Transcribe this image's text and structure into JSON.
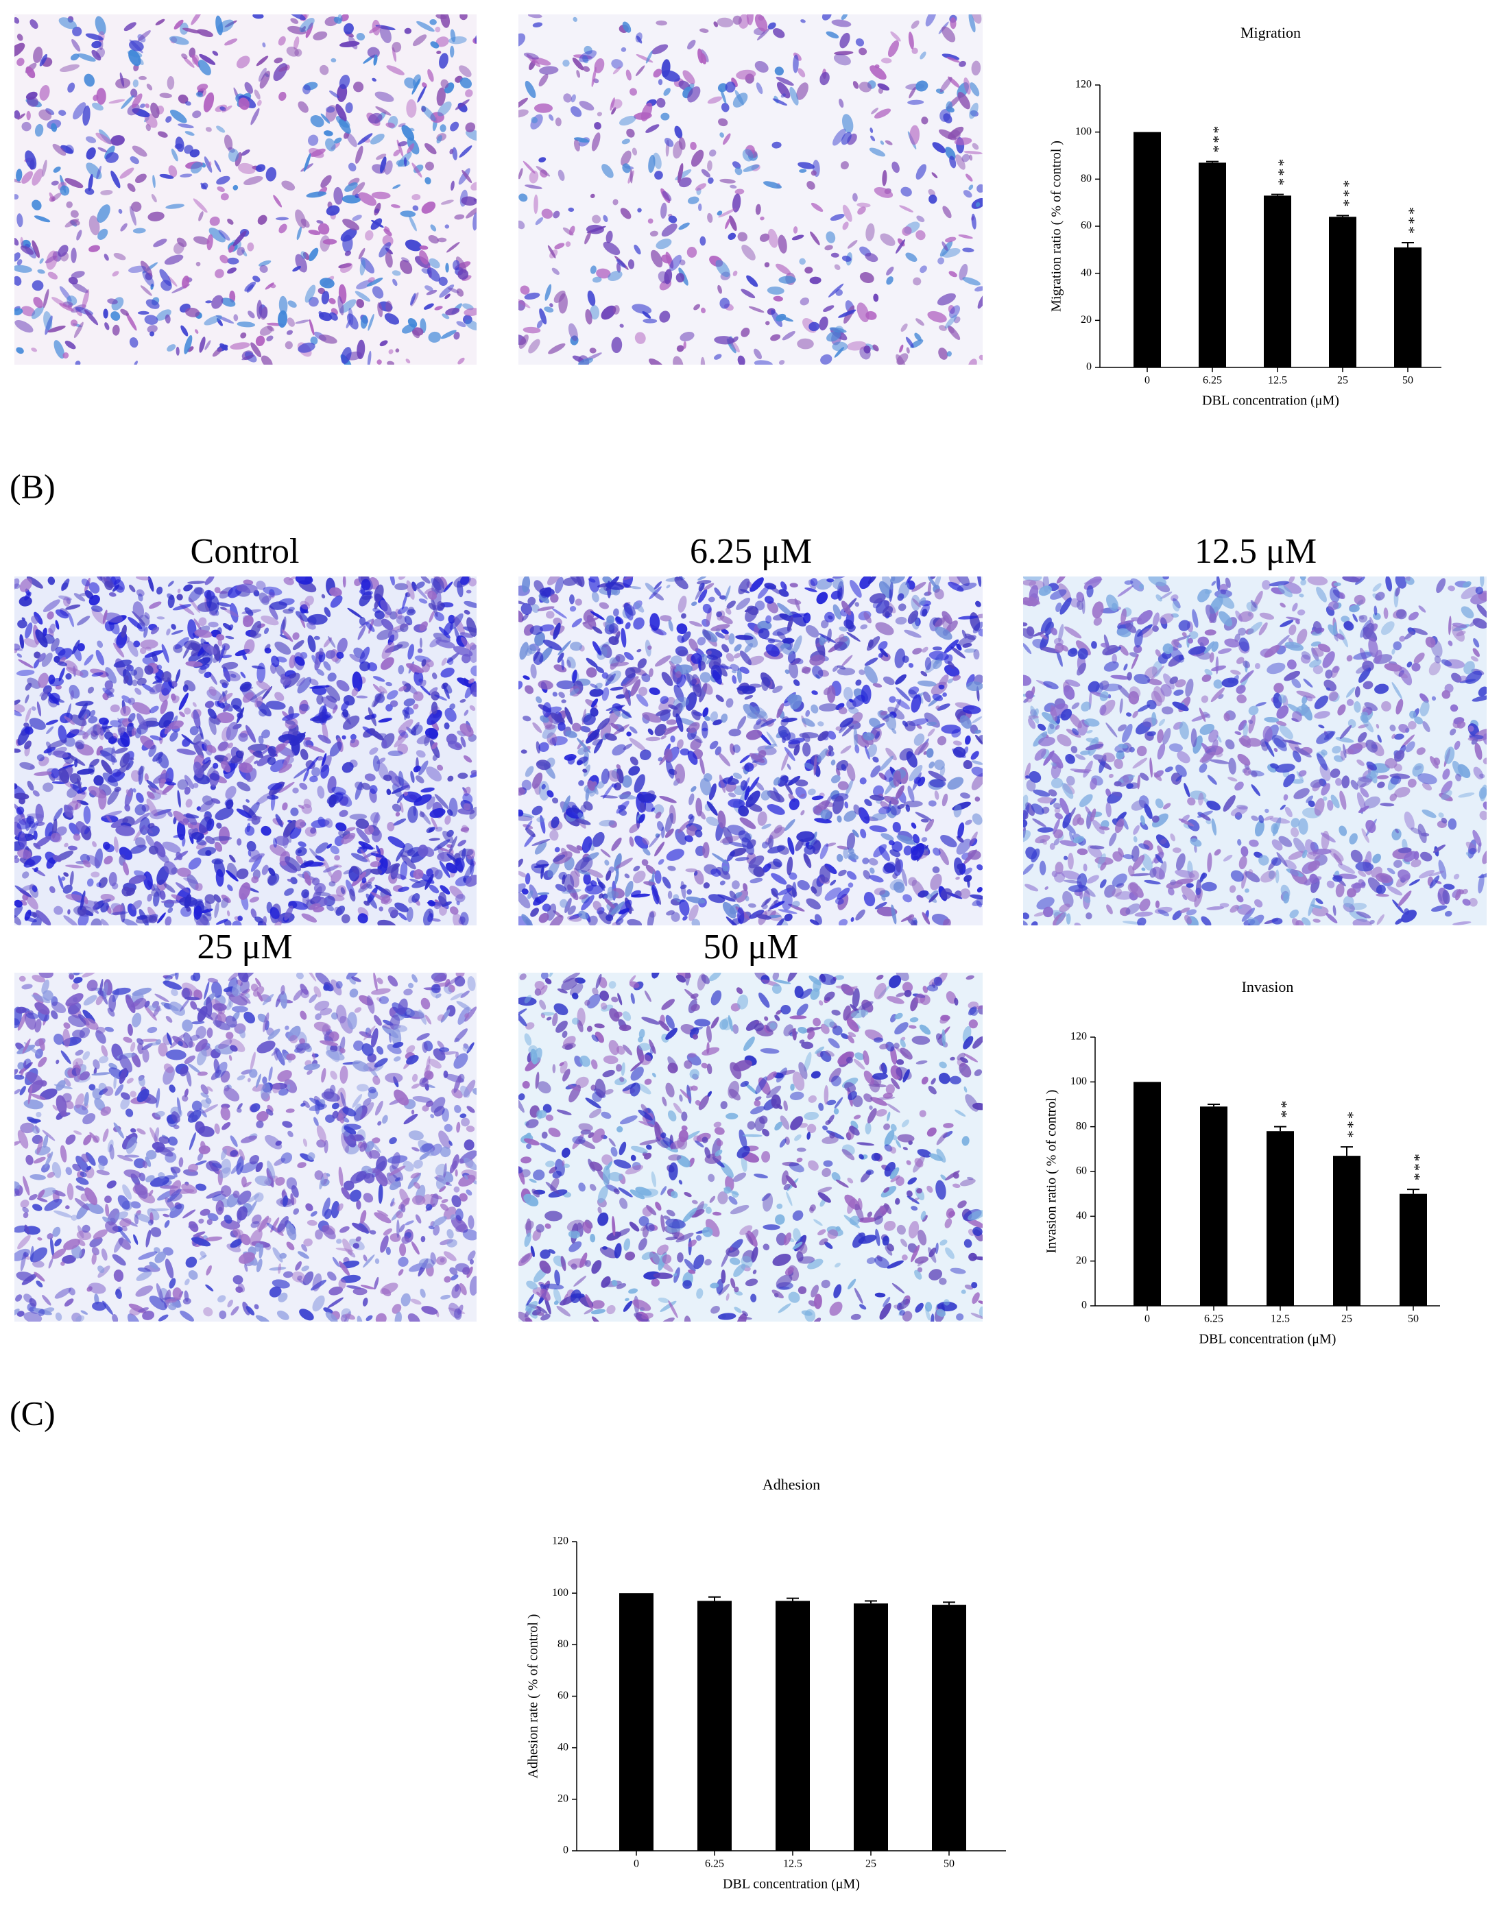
{
  "panel_labels": [
    "(B)",
    "(C)"
  ],
  "image_labels": [
    "Control",
    "6.25 μM",
    "12.5 μM",
    "25 μM",
    "50 μM"
  ],
  "chart_data": [
    {
      "type": "bar",
      "title": "Migration",
      "x_label": "DBL concentration (μM)",
      "y_label": "Migration ratio ( % of control )",
      "categories": [
        "0",
        "6.25",
        "12.5",
        "25",
        "50"
      ],
      "values": [
        100,
        87,
        73,
        64,
        51
      ],
      "errors": [
        0,
        0.5,
        0.5,
        0.5,
        2
      ],
      "color": "#000000",
      "ylim": [
        0,
        120
      ],
      "yticks": [
        0,
        20,
        40,
        60,
        80,
        100,
        120
      ],
      "annotations": [
        {
          "x": "6.25",
          "text": "***"
        },
        {
          "x": "12.5",
          "text": "***"
        },
        {
          "x": "25",
          "text": "***"
        },
        {
          "x": "50",
          "text": "***"
        }
      ]
    },
    {
      "type": "bar",
      "title": "Invasion",
      "x_label": "DBL concentration (μM)",
      "y_label": "Invasion ratio ( % of control )",
      "categories": [
        "0",
        "6.25",
        "12.5",
        "25",
        "50"
      ],
      "values": [
        100,
        89,
        78,
        67,
        50
      ],
      "errors": [
        0,
        1,
        2,
        4,
        2
      ],
      "color": "#000000",
      "ylim": [
        0,
        120
      ],
      "yticks": [
        0,
        20,
        40,
        60,
        80,
        100,
        120
      ],
      "annotations": [
        {
          "x": "12.5",
          "text": "**"
        },
        {
          "x": "25",
          "text": "***"
        },
        {
          "x": "50",
          "text": "***"
        }
      ]
    },
    {
      "type": "bar",
      "title": "Adhesion",
      "x_label": "DBL concentration (μM)",
      "y_label": "Adhesion rate ( % of control )",
      "categories": [
        "0",
        "6.25",
        "12.5",
        "25",
        "50"
      ],
      "values": [
        100,
        97,
        97,
        96,
        95.5
      ],
      "errors": [
        0,
        1.5,
        1,
        1,
        1
      ],
      "color": "#000000",
      "ylim": [
        0,
        120
      ],
      "yticks": [
        0,
        20,
        40,
        60,
        80,
        100,
        120
      ]
    }
  ]
}
